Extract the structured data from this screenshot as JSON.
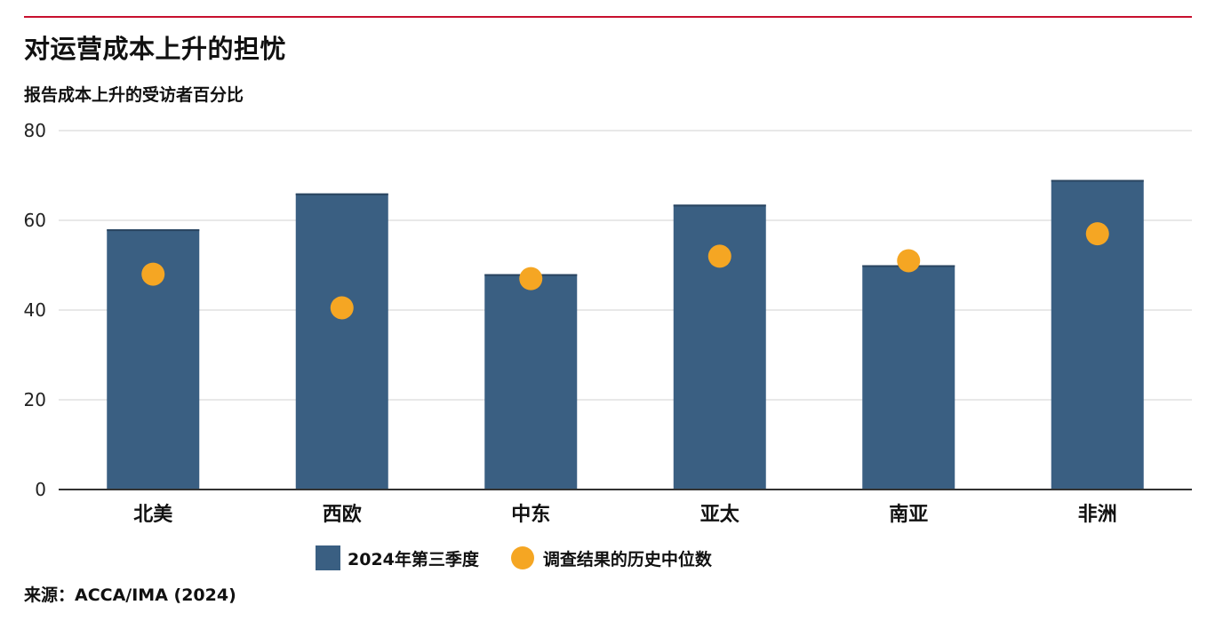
{
  "title": "对运营成本上升的担忧",
  "subtitle": "报告成本上升的受访者百分比",
  "source": "来源：ACCA/IMA (2024)",
  "colors": {
    "accent_rule": "#c8102e",
    "bar": "#3a5f82",
    "dot": "#f5a623",
    "grid": "#d9d9d9",
    "axis": "#333333"
  },
  "chart_data": {
    "type": "bar",
    "categories": [
      "北美",
      "西欧",
      "中东",
      "亚太",
      "南亚",
      "非洲"
    ],
    "series": [
      {
        "name": "2024年第三季度",
        "kind": "bar",
        "values": [
          58,
          66,
          48,
          63.5,
          50,
          69
        ]
      },
      {
        "name": "调查结果的历史中位数",
        "kind": "scatter",
        "values": [
          48,
          40.5,
          47,
          52,
          51,
          57
        ]
      }
    ],
    "ylim": [
      0,
      80
    ],
    "yticks": [
      "0",
      "20",
      "40",
      "60",
      "80"
    ],
    "grid": true,
    "legend": "bottom"
  }
}
